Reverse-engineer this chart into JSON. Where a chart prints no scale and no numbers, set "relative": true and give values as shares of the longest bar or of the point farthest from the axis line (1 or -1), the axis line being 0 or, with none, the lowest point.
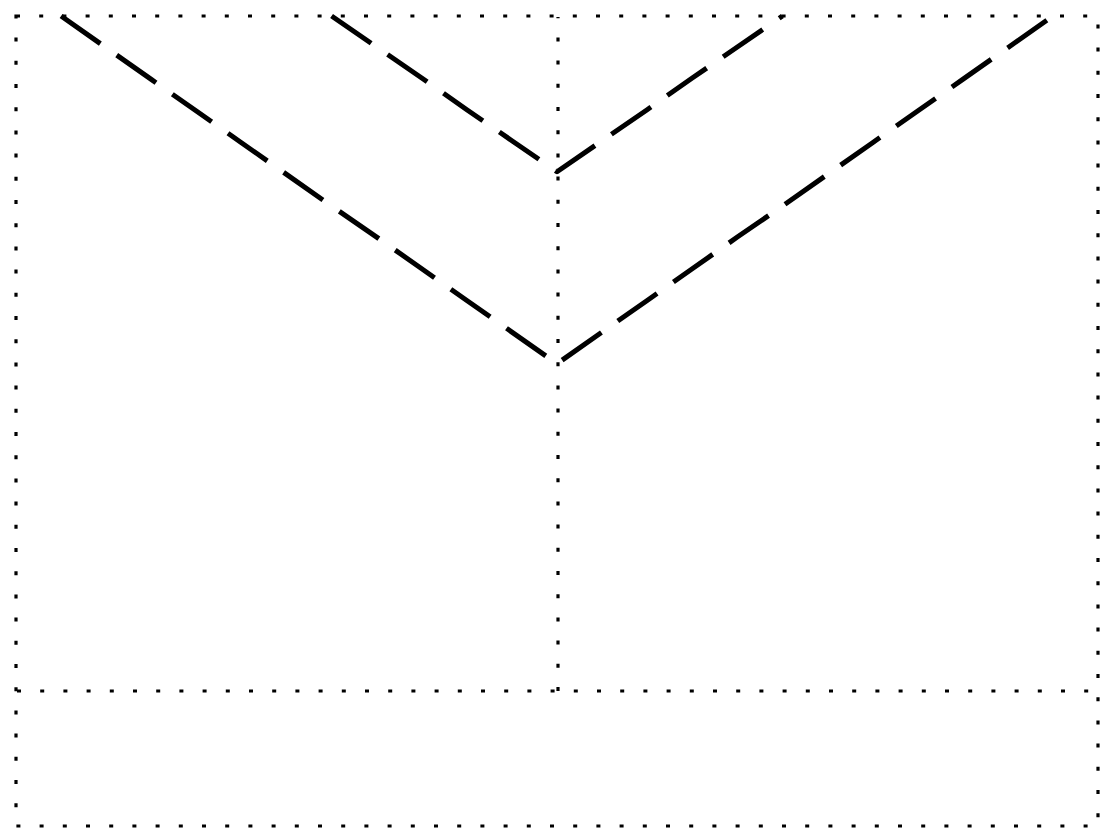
{
  "chart_data": {
    "type": "line",
    "relative": true,
    "line_style": "dashed",
    "categories": [
      null,
      null,
      null,
      null,
      null,
      null,
      null,
      null,
      null,
      null,
      null,
      null,
      null,
      null,
      null,
      null,
      null,
      null,
      null,
      null,
      null,
      null,
      null
    ],
    "series": [
      {
        "color": "#000000",
        "values": [
          1,
          0.953,
          0.906,
          0.859,
          0.812,
          0.765,
          0.718,
          0.672,
          0.625,
          0.578,
          0.531,
          0.484,
          0.531,
          0.578,
          0.625,
          0.672,
          0.718,
          0.765,
          0.812,
          0.859,
          0.906,
          0.953,
          1
        ]
      },
      {
        "color": "#000000",
        "values": [
          null,
          null,
          null,
          null,
          null,
          null,
          1,
          0.954,
          0.908,
          0.861,
          0.815,
          0.769,
          0.815,
          0.861,
          0.908,
          0.954,
          1,
          null,
          null,
          null,
          null,
          null,
          null
        ]
      }
    ]
  }
}
